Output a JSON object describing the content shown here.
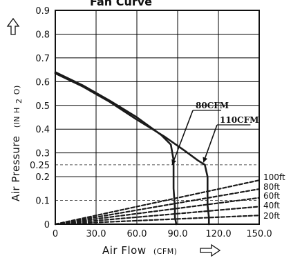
{
  "chart_data": {
    "type": "line",
    "title": "Fan Curve",
    "xlabel": "Air Flow",
    "xlabel_unit": "(CFM)",
    "ylabel": "Air Pressure",
    "ylabel_unit": "(IN H",
    "ylabel_unit_sub": "2",
    "ylabel_unit_end": "O)",
    "xlim": [
      0,
      150
    ],
    "ylim": [
      0,
      0.9
    ],
    "x_ticks": [
      0,
      30,
      60,
      90,
      120,
      150
    ],
    "x_tick_labels": [
      "0",
      "30.0",
      "60.0",
      "90.0",
      "120.0",
      "150.0"
    ],
    "y_ticks": [
      0,
      0.1,
      0.2,
      0.25,
      0.3,
      0.4,
      0.5,
      0.6,
      0.7,
      0.8,
      0.9
    ],
    "y_tick_labels": [
      "0",
      "0.1",
      "0.2",
      "0.25",
      "0.3",
      "0.4",
      "0.5",
      "0.6",
      "0.7",
      "0.8",
      "0.9"
    ],
    "grid": true,
    "reference_lines_y": [
      0.1,
      0.25
    ],
    "series": [
      {
        "name": "80CFM",
        "style": "solid",
        "x": [
          0,
          20,
          40,
          60,
          78,
          85,
          87,
          87,
          88,
          88,
          89
        ],
        "y": [
          0.64,
          0.585,
          0.52,
          0.45,
          0.375,
          0.335,
          0.27,
          0.15,
          0.07,
          0.03,
          0
        ]
      },
      {
        "name": "110CFM",
        "style": "solid",
        "x": [
          0,
          20,
          40,
          60,
          80,
          95,
          105,
          110,
          112,
          112,
          113,
          113
        ],
        "y": [
          0.635,
          0.58,
          0.515,
          0.44,
          0.37,
          0.31,
          0.268,
          0.25,
          0.2,
          0.08,
          0.03,
          0
        ]
      },
      {
        "name": "100ft",
        "style": "dashed",
        "x": [
          0,
          150
        ],
        "y": [
          0,
          0.185
        ]
      },
      {
        "name": "80ft",
        "style": "dashed",
        "x": [
          0,
          150
        ],
        "y": [
          0,
          0.148
        ]
      },
      {
        "name": "60ft",
        "style": "dashed",
        "x": [
          0,
          150
        ],
        "y": [
          0,
          0.111
        ]
      },
      {
        "name": "40ft",
        "style": "dashed",
        "x": [
          0,
          150
        ],
        "y": [
          0,
          0.074
        ]
      },
      {
        "name": "20ft",
        "style": "dashed",
        "x": [
          0,
          150
        ],
        "y": [
          0,
          0.037
        ]
      }
    ],
    "callouts": [
      {
        "label": "80CFM",
        "points_to_x": 86,
        "points_to_y": 0.25
      },
      {
        "label": "110CFM",
        "points_to_x": 109,
        "points_to_y": 0.26
      }
    ],
    "colors": {
      "line": "#1a1a1a",
      "grid": "#000000",
      "ref": "#555555"
    }
  }
}
